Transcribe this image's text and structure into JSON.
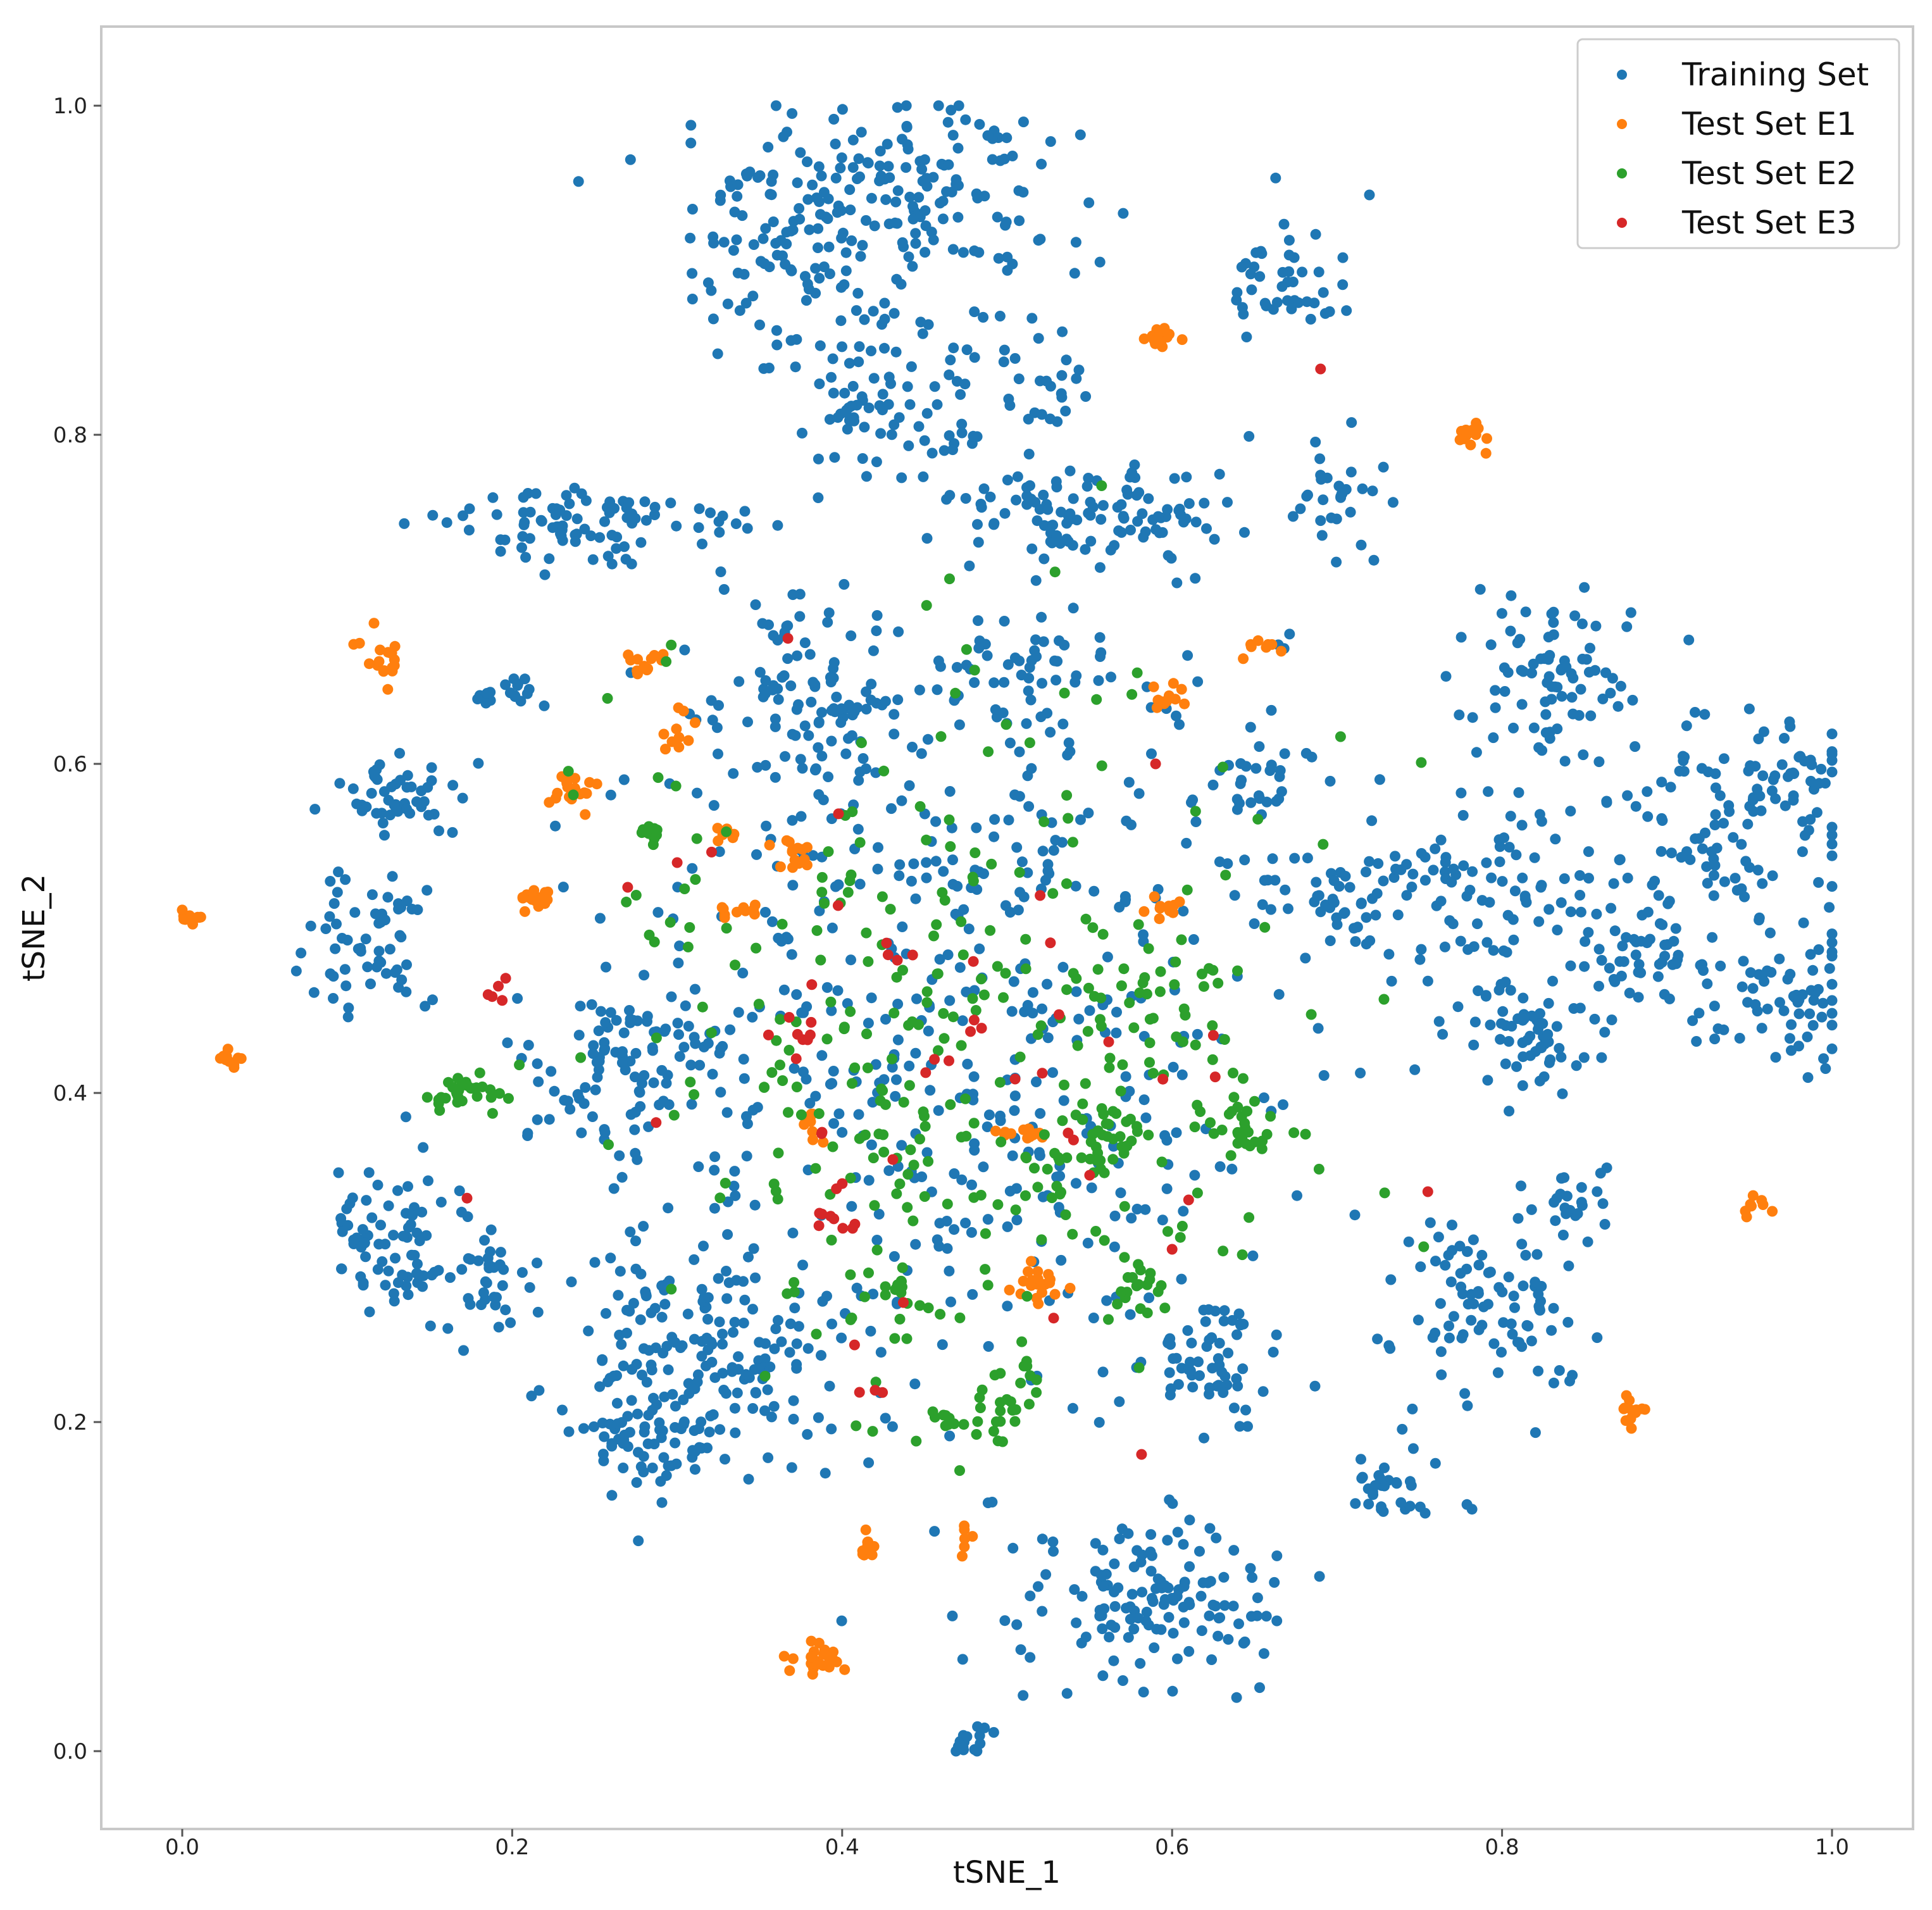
{
  "chart_data": {
    "type": "scatter",
    "title": "",
    "xlabel": "tSNE_1",
    "ylabel": "tSNE_2",
    "xlim": [
      -0.05,
      1.05
    ],
    "ylim": [
      -0.05,
      1.05
    ],
    "xticks": [
      "0.0",
      "0.2",
      "0.4",
      "0.6",
      "0.8",
      "1.0"
    ],
    "xtick_values": [
      0.0,
      0.2,
      0.4,
      0.6,
      0.8,
      1.0
    ],
    "yticks": [
      "0.0",
      "0.2",
      "0.4",
      "0.6",
      "0.8",
      "1.0"
    ],
    "ytick_values": [
      0.0,
      0.2,
      0.4,
      0.6,
      0.8,
      1.0
    ],
    "grid": false,
    "legend_position": "top-right",
    "series": [
      {
        "name": "Training Set",
        "color": "#1f77b4",
        "clusters": [
          {
            "cx": 0.44,
            "cy": 0.94,
            "sx": 0.05,
            "sy": 0.035,
            "n": 170
          },
          {
            "cx": 0.36,
            "cy": 0.91,
            "sx": 0.03,
            "sy": 0.03,
            "n": 70
          },
          {
            "cx": 0.42,
            "cy": 0.82,
            "sx": 0.03,
            "sy": 0.025,
            "n": 90
          },
          {
            "cx": 0.52,
            "cy": 0.84,
            "sx": 0.015,
            "sy": 0.015,
            "n": 25
          },
          {
            "cx": 0.67,
            "cy": 0.89,
            "sx": 0.02,
            "sy": 0.02,
            "n": 45
          },
          {
            "cx": 0.25,
            "cy": 0.745,
            "sx": 0.045,
            "sy": 0.012,
            "n": 90
          },
          {
            "cx": 0.52,
            "cy": 0.75,
            "sx": 0.035,
            "sy": 0.02,
            "n": 60
          },
          {
            "cx": 0.58,
            "cy": 0.755,
            "sx": 0.03,
            "sy": 0.015,
            "n": 50
          },
          {
            "cx": 0.7,
            "cy": 0.76,
            "sx": 0.012,
            "sy": 0.015,
            "n": 30
          },
          {
            "cx": 0.38,
            "cy": 0.635,
            "sx": 0.025,
            "sy": 0.03,
            "n": 100
          },
          {
            "cx": 0.51,
            "cy": 0.655,
            "sx": 0.02,
            "sy": 0.02,
            "n": 40
          },
          {
            "cx": 0.13,
            "cy": 0.58,
            "sx": 0.02,
            "sy": 0.012,
            "n": 50
          },
          {
            "cx": 0.2,
            "cy": 0.645,
            "sx": 0.008,
            "sy": 0.006,
            "n": 18
          },
          {
            "cx": 0.12,
            "cy": 0.49,
            "sx": 0.018,
            "sy": 0.025,
            "n": 60
          },
          {
            "cx": 0.13,
            "cy": 0.315,
            "sx": 0.02,
            "sy": 0.025,
            "n": 80
          },
          {
            "cx": 0.19,
            "cy": 0.29,
            "sx": 0.012,
            "sy": 0.015,
            "n": 30
          },
          {
            "cx": 0.27,
            "cy": 0.42,
            "sx": 0.03,
            "sy": 0.03,
            "n": 100
          },
          {
            "cx": 0.31,
            "cy": 0.24,
            "sx": 0.04,
            "sy": 0.035,
            "n": 180
          },
          {
            "cx": 0.28,
            "cy": 0.19,
            "sx": 0.02,
            "sy": 0.012,
            "n": 40
          },
          {
            "cx": 0.62,
            "cy": 0.24,
            "sx": 0.02,
            "sy": 0.02,
            "n": 60
          },
          {
            "cx": 0.59,
            "cy": 0.09,
            "sx": 0.04,
            "sy": 0.03,
            "n": 140
          },
          {
            "cx": 0.475,
            "cy": 0.005,
            "sx": 0.006,
            "sy": 0.006,
            "n": 15
          },
          {
            "cx": 0.73,
            "cy": 0.16,
            "sx": 0.015,
            "sy": 0.012,
            "n": 30
          },
          {
            "cx": 0.79,
            "cy": 0.27,
            "sx": 0.03,
            "sy": 0.03,
            "n": 90
          },
          {
            "cx": 0.84,
            "cy": 0.33,
            "sx": 0.015,
            "sy": 0.012,
            "n": 25
          },
          {
            "cx": 0.82,
            "cy": 0.44,
            "sx": 0.02,
            "sy": 0.018,
            "n": 60
          },
          {
            "cx": 0.89,
            "cy": 0.48,
            "sx": 0.02,
            "sy": 0.02,
            "n": 60
          },
          {
            "cx": 0.97,
            "cy": 0.46,
            "sx": 0.02,
            "sy": 0.02,
            "n": 60
          },
          {
            "cx": 0.93,
            "cy": 0.56,
            "sx": 0.04,
            "sy": 0.04,
            "n": 100
          },
          {
            "cx": 0.83,
            "cy": 0.65,
            "sx": 0.025,
            "sy": 0.025,
            "n": 80
          },
          {
            "cx": 0.97,
            "cy": 0.59,
            "sx": 0.02,
            "sy": 0.015,
            "n": 40
          },
          {
            "cx": 0.7,
            "cy": 0.52,
            "sx": 0.03,
            "sy": 0.015,
            "n": 50
          },
          {
            "cx": 0.79,
            "cy": 0.52,
            "sx": 0.035,
            "sy": 0.03,
            "n": 80
          },
          {
            "cx": 0.65,
            "cy": 0.59,
            "sx": 0.015,
            "sy": 0.015,
            "n": 25
          },
          {
            "cx": 0.47,
            "cy": 0.45,
            "sx": 0.11,
            "sy": 0.12,
            "n": 520
          }
        ]
      },
      {
        "name": "Test Set E1",
        "color": "#ff7f0e",
        "clusters": [
          {
            "cx": 0.006,
            "cy": 0.507,
            "sx": 0.004,
            "sy": 0.003,
            "n": 12
          },
          {
            "cx": 0.03,
            "cy": 0.42,
            "sx": 0.004,
            "sy": 0.003,
            "n": 10
          },
          {
            "cx": 0.12,
            "cy": 0.665,
            "sx": 0.006,
            "sy": 0.008,
            "n": 18
          },
          {
            "cx": 0.235,
            "cy": 0.585,
            "sx": 0.007,
            "sy": 0.006,
            "n": 20
          },
          {
            "cx": 0.215,
            "cy": 0.52,
            "sx": 0.006,
            "sy": 0.005,
            "n": 14
          },
          {
            "cx": 0.28,
            "cy": 0.662,
            "sx": 0.006,
            "sy": 0.004,
            "n": 12
          },
          {
            "cx": 0.3,
            "cy": 0.615,
            "sx": 0.005,
            "sy": 0.006,
            "n": 10
          },
          {
            "cx": 0.33,
            "cy": 0.557,
            "sx": 0.004,
            "sy": 0.004,
            "n": 6
          },
          {
            "cx": 0.37,
            "cy": 0.545,
            "sx": 0.006,
            "sy": 0.005,
            "n": 14
          },
          {
            "cx": 0.34,
            "cy": 0.51,
            "sx": 0.007,
            "sy": 0.003,
            "n": 10
          },
          {
            "cx": 0.592,
            "cy": 0.86,
            "sx": 0.005,
            "sy": 0.005,
            "n": 16
          },
          {
            "cx": 0.78,
            "cy": 0.8,
            "sx": 0.004,
            "sy": 0.006,
            "n": 14
          },
          {
            "cx": 0.595,
            "cy": 0.64,
            "sx": 0.006,
            "sy": 0.004,
            "n": 12
          },
          {
            "cx": 0.655,
            "cy": 0.67,
            "sx": 0.006,
            "sy": 0.004,
            "n": 8
          },
          {
            "cx": 0.595,
            "cy": 0.512,
            "sx": 0.005,
            "sy": 0.004,
            "n": 10
          },
          {
            "cx": 0.38,
            "cy": 0.38,
            "sx": 0.004,
            "sy": 0.006,
            "n": 8
          },
          {
            "cx": 0.51,
            "cy": 0.375,
            "sx": 0.008,
            "sy": 0.003,
            "n": 12
          },
          {
            "cx": 0.52,
            "cy": 0.285,
            "sx": 0.008,
            "sy": 0.006,
            "n": 20
          },
          {
            "cx": 0.415,
            "cy": 0.125,
            "sx": 0.005,
            "sy": 0.004,
            "n": 10
          },
          {
            "cx": 0.475,
            "cy": 0.13,
            "sx": 0.003,
            "sy": 0.006,
            "n": 6
          },
          {
            "cx": 0.385,
            "cy": 0.055,
            "sx": 0.01,
            "sy": 0.005,
            "n": 24
          },
          {
            "cx": 0.88,
            "cy": 0.205,
            "sx": 0.005,
            "sy": 0.004,
            "n": 12
          },
          {
            "cx": 0.948,
            "cy": 0.33,
            "sx": 0.004,
            "sy": 0.003,
            "n": 8
          }
        ]
      },
      {
        "name": "Test Set E2",
        "color": "#2ca02c",
        "clusters": [
          {
            "cx": 0.17,
            "cy": 0.4,
            "sx": 0.015,
            "sy": 0.006,
            "n": 30
          },
          {
            "cx": 0.285,
            "cy": 0.557,
            "sx": 0.005,
            "sy": 0.003,
            "n": 10
          },
          {
            "cx": 0.56,
            "cy": 0.37,
            "sx": 0.012,
            "sy": 0.012,
            "n": 30
          },
          {
            "cx": 0.64,
            "cy": 0.38,
            "sx": 0.012,
            "sy": 0.01,
            "n": 30
          },
          {
            "cx": 0.58,
            "cy": 0.28,
            "sx": 0.006,
            "sy": 0.01,
            "n": 18
          },
          {
            "cx": 0.5,
            "cy": 0.21,
            "sx": 0.01,
            "sy": 0.015,
            "n": 25
          },
          {
            "cx": 0.465,
            "cy": 0.2,
            "sx": 0.006,
            "sy": 0.004,
            "n": 10
          },
          {
            "cx": 0.43,
            "cy": 0.28,
            "sx": 0.005,
            "sy": 0.005,
            "n": 10
          },
          {
            "cx": 0.53,
            "cy": 0.34,
            "sx": 0.005,
            "sy": 0.005,
            "n": 8
          },
          {
            "cx": 0.6,
            "cy": 0.46,
            "sx": 0.02,
            "sy": 0.02,
            "n": 25
          },
          {
            "cx": 0.47,
            "cy": 0.44,
            "sx": 0.1,
            "sy": 0.11,
            "n": 300
          }
        ]
      },
      {
        "name": "Test Set E3",
        "color": "#d62728",
        "clusters": [
          {
            "cx": 0.19,
            "cy": 0.46,
            "sx": 0.005,
            "sy": 0.004,
            "n": 5
          },
          {
            "cx": 0.4,
            "cy": 0.325,
            "sx": 0.008,
            "sy": 0.01,
            "n": 10
          },
          {
            "cx": 0.38,
            "cy": 0.44,
            "sx": 0.008,
            "sy": 0.008,
            "n": 6
          },
          {
            "cx": 0.43,
            "cy": 0.48,
            "sx": 0.008,
            "sy": 0.008,
            "n": 4
          },
          {
            "cx": 0.47,
            "cy": 0.42,
            "sx": 0.01,
            "sy": 0.01,
            "n": 4
          },
          {
            "cx": 0.415,
            "cy": 0.22,
            "sx": 0.004,
            "sy": 0.004,
            "n": 3
          },
          {
            "cx": 0.45,
            "cy": 0.38,
            "sx": 0.09,
            "sy": 0.1,
            "n": 28
          }
        ],
        "points": [
          [
            0.69,
            0.84
          ],
          [
            0.59,
            0.6
          ],
          [
            0.27,
            0.525
          ],
          [
            0.3,
            0.54
          ],
          [
            0.52,
            0.52
          ],
          [
            0.625,
            0.435
          ],
          [
            0.755,
            0.34
          ],
          [
            0.61,
            0.335
          ],
          [
            0.6,
            0.305
          ],
          [
            0.55,
            0.35
          ]
        ]
      }
    ]
  }
}
